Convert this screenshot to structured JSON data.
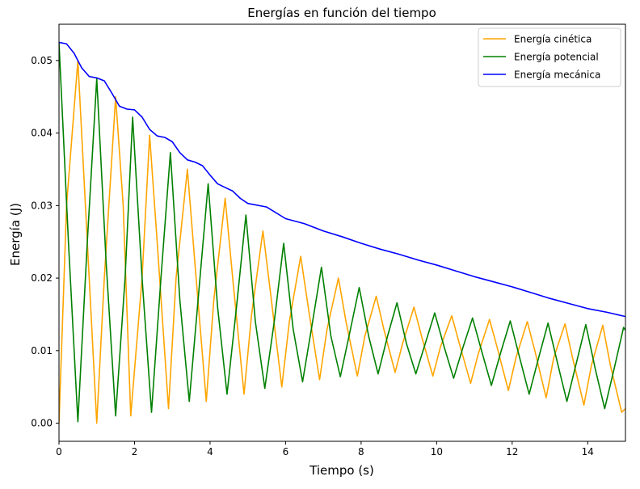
{
  "chart_data": {
    "type": "line",
    "title": "Energías en función del tiempo",
    "xlabel": "Tiempo (s)",
    "ylabel": "Energía (J)",
    "xlim": [
      0,
      15
    ],
    "ylim": [
      -0.0025,
      0.055
    ],
    "xticks": [
      0,
      2,
      4,
      6,
      8,
      10,
      12,
      14
    ],
    "yticks": [
      0.0,
      0.01,
      0.02,
      0.03,
      0.04,
      0.05
    ],
    "xtick_labels": [
      "0",
      "2",
      "4",
      "6",
      "8",
      "10",
      "12",
      "14"
    ],
    "ytick_labels": [
      "0.00",
      "0.01",
      "0.02",
      "0.03",
      "0.04",
      "0.05"
    ],
    "grid": false,
    "legend_position": "top-right",
    "series": [
      {
        "name": "Energía cinética",
        "color": "#ffa500",
        "x": [
          0,
          0.2,
          0.5,
          0.7,
          1.0,
          1.2,
          1.5,
          1.7,
          1.9,
          2.2,
          2.4,
          2.6,
          2.9,
          3.1,
          3.4,
          3.6,
          3.9,
          4.1,
          4.4,
          4.6,
          4.9,
          5.1,
          5.4,
          5.6,
          5.9,
          6.1,
          6.4,
          6.6,
          6.9,
          7.1,
          7.4,
          7.6,
          7.9,
          8.1,
          8.4,
          8.6,
          8.9,
          9.1,
          9.4,
          9.6,
          9.9,
          10.1,
          10.4,
          10.6,
          10.9,
          11.1,
          11.4,
          11.6,
          11.9,
          12.1,
          12.4,
          12.6,
          12.9,
          13.1,
          13.4,
          13.6,
          13.9,
          14.1,
          14.4,
          14.6,
          14.9,
          15.0
        ],
        "values": [
          0.0,
          0.03,
          0.05,
          0.03,
          0.0,
          0.02,
          0.045,
          0.03,
          0.001,
          0.02,
          0.0397,
          0.025,
          0.002,
          0.02,
          0.035,
          0.022,
          0.003,
          0.017,
          0.031,
          0.02,
          0.004,
          0.015,
          0.0265,
          0.018,
          0.005,
          0.014,
          0.023,
          0.016,
          0.006,
          0.013,
          0.02,
          0.014,
          0.0065,
          0.012,
          0.0175,
          0.013,
          0.007,
          0.011,
          0.016,
          0.012,
          0.0065,
          0.0105,
          0.0148,
          0.011,
          0.0055,
          0.0095,
          0.0143,
          0.0105,
          0.0045,
          0.009,
          0.014,
          0.01,
          0.0035,
          0.009,
          0.0137,
          0.009,
          0.0025,
          0.008,
          0.0135,
          0.008,
          0.0015,
          0.002
        ]
      },
      {
        "name": "Energía potencial",
        "color": "#008000",
        "x": [
          0,
          0.25,
          0.5,
          0.75,
          1.0,
          1.25,
          1.5,
          1.75,
          1.95,
          2.2,
          2.45,
          2.7,
          2.95,
          3.2,
          3.45,
          3.7,
          3.95,
          4.2,
          4.45,
          4.7,
          4.95,
          5.2,
          5.45,
          5.7,
          5.95,
          6.2,
          6.45,
          6.7,
          6.95,
          7.2,
          7.45,
          7.7,
          7.95,
          8.2,
          8.45,
          8.7,
          8.95,
          9.2,
          9.45,
          9.7,
          9.95,
          10.2,
          10.45,
          10.7,
          10.95,
          11.2,
          11.45,
          11.7,
          11.95,
          12.2,
          12.45,
          12.7,
          12.95,
          13.2,
          13.45,
          13.7,
          13.95,
          14.2,
          14.45,
          14.7,
          14.95,
          15.0
        ],
        "values": [
          0.0525,
          0.025,
          0.0002,
          0.025,
          0.0475,
          0.022,
          0.001,
          0.02,
          0.0422,
          0.02,
          0.0015,
          0.02,
          0.0373,
          0.017,
          0.003,
          0.018,
          0.033,
          0.016,
          0.004,
          0.016,
          0.0287,
          0.014,
          0.0048,
          0.014,
          0.0248,
          0.013,
          0.0057,
          0.0135,
          0.0215,
          0.012,
          0.0064,
          0.0125,
          0.0187,
          0.012,
          0.0068,
          0.012,
          0.0166,
          0.011,
          0.0068,
          0.011,
          0.0152,
          0.0105,
          0.0062,
          0.0105,
          0.0145,
          0.0098,
          0.0052,
          0.0098,
          0.0141,
          0.009,
          0.004,
          0.009,
          0.0138,
          0.0083,
          0.003,
          0.0083,
          0.0136,
          0.0075,
          0.002,
          0.0075,
          0.0132,
          0.0128
        ]
      },
      {
        "name": "Energía mecánica",
        "color": "#0000ff",
        "x": [
          0,
          0.2,
          0.4,
          0.6,
          0.8,
          1.0,
          1.2,
          1.4,
          1.6,
          1.8,
          2.0,
          2.2,
          2.4,
          2.6,
          2.8,
          3.0,
          3.2,
          3.4,
          3.6,
          3.8,
          4.0,
          4.2,
          4.4,
          4.6,
          4.8,
          5.0,
          5.5,
          6.0,
          6.5,
          7.0,
          7.5,
          8.0,
          8.5,
          9.0,
          9.5,
          10.0,
          10.5,
          11.0,
          11.5,
          12.0,
          12.5,
          13.0,
          13.5,
          14.0,
          14.5,
          15.0
        ],
        "values": [
          0.0525,
          0.0523,
          0.051,
          0.049,
          0.0478,
          0.0476,
          0.0472,
          0.0455,
          0.0437,
          0.0433,
          0.0432,
          0.0422,
          0.0405,
          0.0396,
          0.0394,
          0.0388,
          0.0373,
          0.0363,
          0.036,
          0.0355,
          0.0342,
          0.033,
          0.0325,
          0.032,
          0.031,
          0.0303,
          0.0298,
          0.0282,
          0.0275,
          0.0265,
          0.0257,
          0.0248,
          0.024,
          0.0233,
          0.0225,
          0.0218,
          0.021,
          0.0202,
          0.0195,
          0.0188,
          0.018,
          0.0172,
          0.0165,
          0.0158,
          0.0153,
          0.0147
        ]
      }
    ]
  }
}
